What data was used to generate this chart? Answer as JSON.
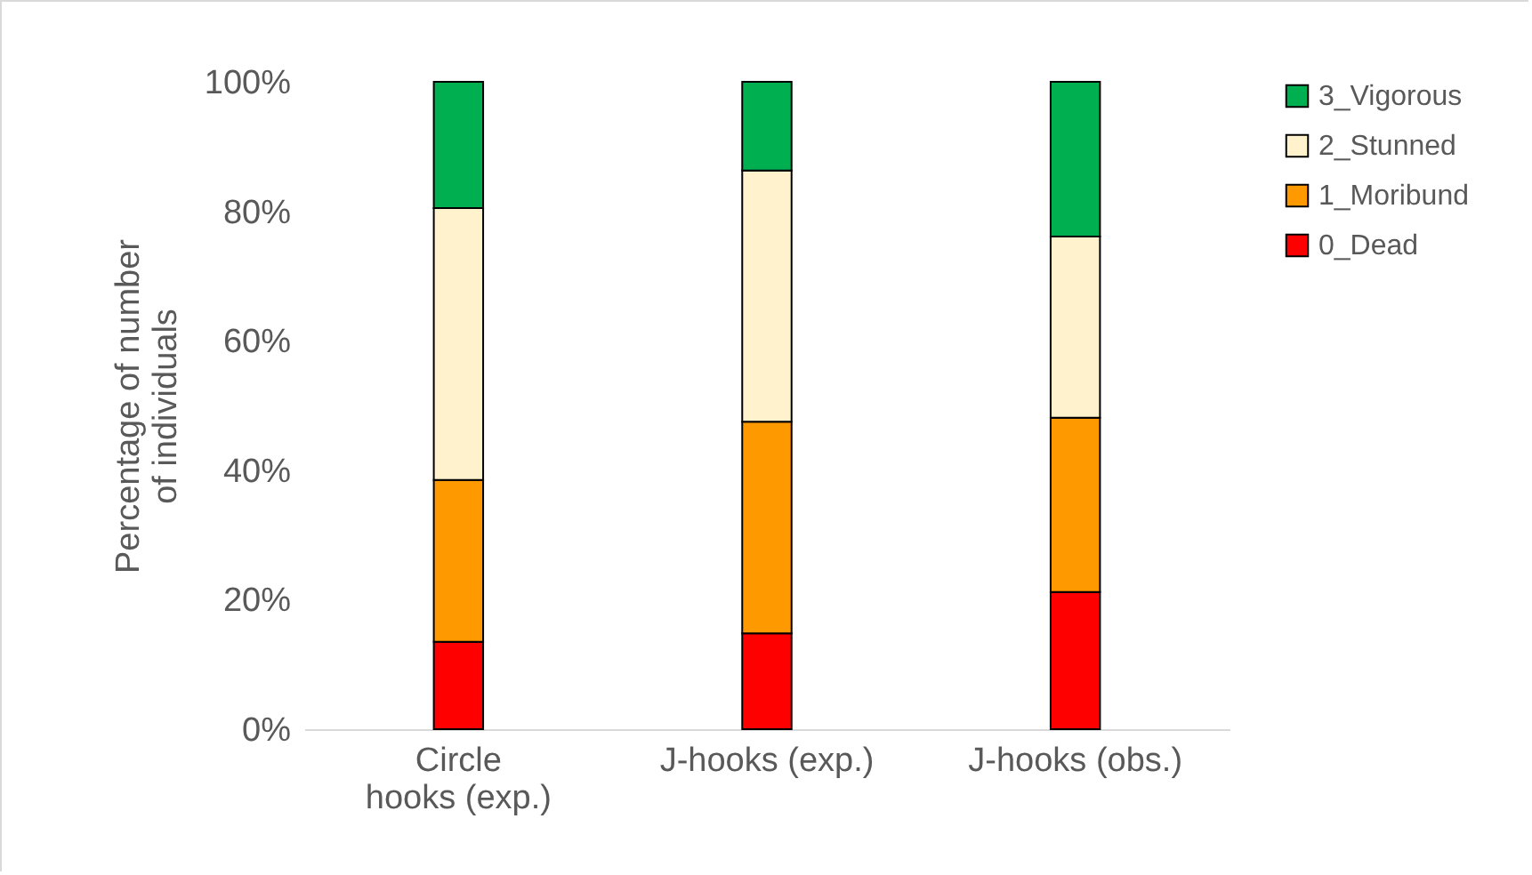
{
  "chart_data": {
    "type": "bar",
    "stacked": true,
    "ylabel": "Percentage of number of individuals",
    "categories": [
      "Circle hooks (exp.)",
      "J-hooks (exp.)",
      "J-hooks (obs.)"
    ],
    "series": [
      {
        "name": "0_Dead",
        "color": "#ff0000",
        "values": [
          13.5,
          14.8,
          21.2
        ]
      },
      {
        "name": "1_Moribund",
        "color": "#ff9900",
        "values": [
          25,
          32.7,
          26.9
        ]
      },
      {
        "name": "2_Stunned",
        "color": "#fff2cc",
        "values": [
          42,
          38.8,
          28
        ]
      },
      {
        "name": "3_Vigorous",
        "color": "#00b050",
        "values": [
          19.5,
          13.7,
          23.9
        ]
      }
    ],
    "ylim": [
      0,
      100
    ],
    "yticks": [
      {
        "value": 0,
        "label": "0%"
      },
      {
        "value": 20,
        "label": "20%"
      },
      {
        "value": 40,
        "label": "40%"
      },
      {
        "value": 60,
        "label": "60%"
      },
      {
        "value": 80,
        "label": "80%"
      },
      {
        "value": 100,
        "label": "100%"
      }
    ],
    "grid": false,
    "legend": "right"
  }
}
